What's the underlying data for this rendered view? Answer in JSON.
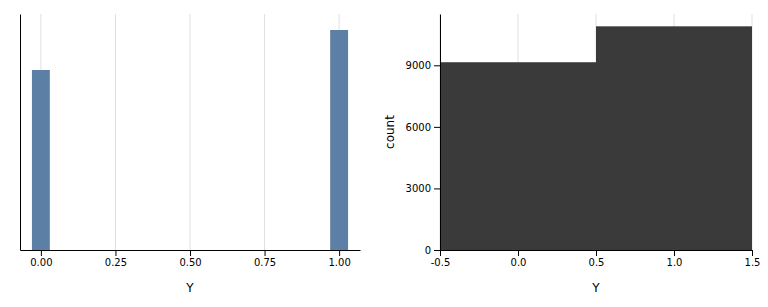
{
  "chart_data": [
    {
      "type": "bar",
      "x": [
        0.0,
        1.0
      ],
      "values": [
        9000,
        11000
      ],
      "color": "#5c7fa6",
      "xlim": [
        -0.07,
        1.07
      ],
      "ylim": [
        0,
        11800
      ],
      "xticks": [
        {
          "value": 0.0,
          "label": "0.00"
        },
        0.25,
        {
          "value": 0.5,
          "label": "0.50"
        },
        0.75,
        {
          "value": 1.0,
          "label": "1.00"
        }
      ],
      "x_label": "Y",
      "tick_labels": "x",
      "grid": true
    },
    {
      "type": "bar",
      "x": [
        0.0,
        1.0
      ],
      "values": [
        9150,
        10900
      ],
      "color": "#3a3a3a",
      "xlim": [
        -0.5,
        1.5
      ],
      "ylim": [
        0,
        11500
      ],
      "xticks": [
        -0.5,
        {
          "value": 0.0,
          "label": "0.0"
        },
        0.5,
        {
          "value": 1.0,
          "label": "1.0"
        },
        1.5
      ],
      "yticks": [
        0,
        3000,
        6000,
        9000
      ],
      "x_label": "Y",
      "y_label": "count",
      "grid": true
    }
  ]
}
